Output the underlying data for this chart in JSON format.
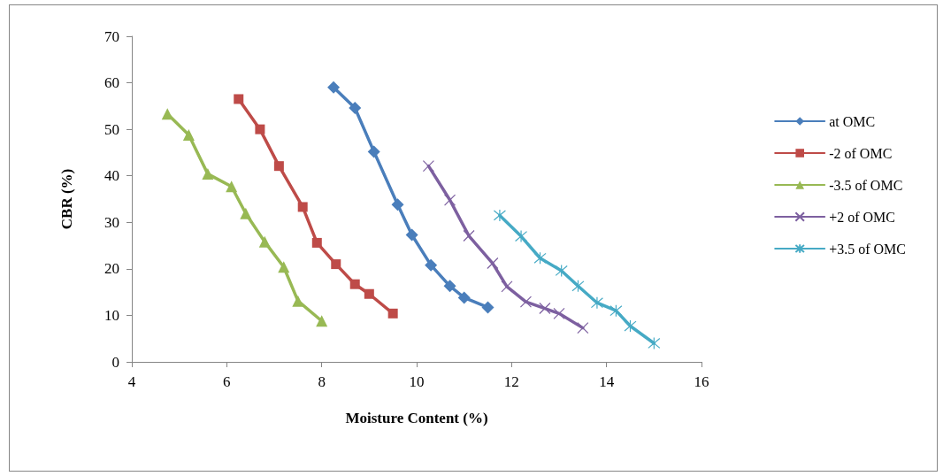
{
  "chart_data": {
    "type": "line",
    "xlabel": "Moisture Content (%)",
    "ylabel": "CBR (%)",
    "xlim": [
      4,
      16
    ],
    "xticks": [
      4,
      6,
      8,
      10,
      12,
      14,
      16
    ],
    "ylim": [
      0,
      70
    ],
    "yticks": [
      0,
      10,
      20,
      30,
      40,
      50,
      60,
      70
    ],
    "grid": false,
    "legend": "right",
    "line_style": "solid",
    "series": [
      {
        "name": "at OMC",
        "color": "#4a7ebb",
        "marker": "diamond",
        "x": [
          8.25,
          8.7,
          9.1,
          9.6,
          9.9,
          10.3,
          10.7,
          11.0,
          11.5
        ],
        "values": [
          59,
          54.6,
          45.2,
          33.8,
          27.3,
          20.8,
          16.3,
          13.8,
          11.7
        ]
      },
      {
        "name": "-2 of OMC",
        "color": "#be4b48",
        "marker": "square",
        "x": [
          6.25,
          6.7,
          7.1,
          7.6,
          7.9,
          8.3,
          8.7,
          9.0,
          9.5
        ],
        "values": [
          56.5,
          50,
          42.1,
          33.3,
          25.6,
          21,
          16.7,
          14.6,
          10.4
        ]
      },
      {
        "name": "-3.5 of OMC",
        "color": "#98b954",
        "marker": "triangle",
        "x": [
          4.75,
          5.2,
          5.6,
          6.1,
          6.4,
          6.8,
          7.2,
          7.5,
          8.0
        ],
        "values": [
          53.3,
          48.8,
          40.4,
          37.7,
          31.9,
          25.8,
          20.4,
          13.1,
          8.8
        ]
      },
      {
        "name": "+2 of OMC",
        "color": "#7d60a0",
        "marker": "cross",
        "x": [
          10.25,
          10.7,
          11.1,
          11.6,
          11.9,
          12.3,
          12.7,
          13.0,
          13.5
        ],
        "values": [
          42.1,
          34.8,
          27.1,
          21.2,
          16.2,
          12.9,
          11.5,
          10.4,
          7.3
        ]
      },
      {
        "name": "+3.5 of OMC",
        "color": "#46aac5",
        "marker": "cross",
        "x": [
          11.75,
          12.2,
          12.6,
          13.05,
          13.4,
          13.8,
          14.2,
          14.5,
          15.0
        ],
        "values": [
          31.5,
          27,
          22.3,
          19.6,
          16.3,
          12.7,
          11,
          7.7,
          4.0
        ]
      }
    ]
  }
}
